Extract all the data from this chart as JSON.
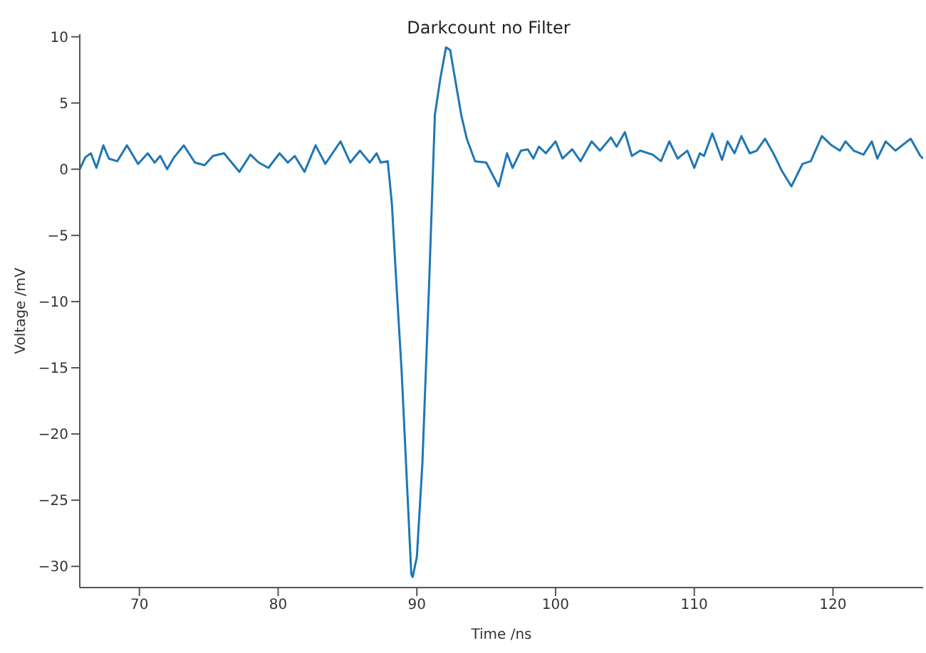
{
  "chart_data": {
    "type": "line",
    "title": "Darkcount no Filter",
    "xlabel": "Time /ns",
    "ylabel": "Voltage /mV",
    "xlim": [
      65.7,
      126.5
    ],
    "ylim": [
      -31.6,
      10.2
    ],
    "xticks": [
      70,
      80,
      90,
      100,
      110,
      120
    ],
    "yticks": [
      -30,
      -25,
      -20,
      -15,
      -10,
      -5,
      0,
      5,
      10
    ],
    "grid": false,
    "legend": false,
    "marker": "none",
    "line_style": "solid",
    "x": [
      65.7,
      66.1,
      66.5,
      66.9,
      67.4,
      67.8,
      68.4,
      69.1,
      69.9,
      70.6,
      71.1,
      71.5,
      72.0,
      72.5,
      73.2,
      74.0,
      74.7,
      75.3,
      76.1,
      77.2,
      78.0,
      78.6,
      79.3,
      80.1,
      80.7,
      81.2,
      81.9,
      82.7,
      83.4,
      84.5,
      85.2,
      85.9,
      86.6,
      87.1,
      87.4,
      87.9,
      88.2,
      88.5,
      88.9,
      89.3,
      89.6,
      89.7,
      90.0,
      90.4,
      90.9,
      91.3,
      91.7,
      92.1,
      92.4,
      93.2,
      93.6,
      94.2,
      95.0,
      95.9,
      96.5,
      96.9,
      97.5,
      98.0,
      98.4,
      98.8,
      99.3,
      100.0,
      100.5,
      101.2,
      101.8,
      102.6,
      103.2,
      104.0,
      104.4,
      105.0,
      105.5,
      106.1,
      107.0,
      107.6,
      108.2,
      108.8,
      109.5,
      110.0,
      110.4,
      110.7,
      111.3,
      112.0,
      112.4,
      112.9,
      113.4,
      114.0,
      114.5,
      115.1,
      115.7,
      116.3,
      117.0,
      117.8,
      118.4,
      119.2,
      119.9,
      120.5,
      120.9,
      121.5,
      122.2,
      122.8,
      123.2,
      123.8,
      124.5,
      125.6,
      126.3,
      126.5
    ],
    "series": [
      {
        "color": "#1f77b4",
        "values": [
          0,
          0.9,
          1.2,
          0.1,
          1.8,
          0.8,
          0.6,
          1.8,
          0.4,
          1.2,
          0.5,
          1.0,
          0,
          0.9,
          1.8,
          0.5,
          0.3,
          1.0,
          1.2,
          -0.2,
          1.1,
          0.5,
          0.1,
          1.2,
          0.5,
          1.0,
          -0.2,
          1.8,
          0.4,
          2.1,
          0.5,
          1.4,
          0.5,
          1.2,
          0.5,
          0.6,
          -2.6,
          -8.2,
          -15.2,
          -24,
          -30.6,
          -30.8,
          -29.3,
          -22.2,
          -8.2,
          4.1,
          6.9,
          9.2,
          9.0,
          4.1,
          2.3,
          0.6,
          0.5,
          -1.3,
          1.2,
          0.1,
          1.4,
          1.5,
          0.8,
          1.7,
          1.2,
          2.1,
          0.8,
          1.5,
          0.6,
          2.1,
          1.4,
          2.4,
          1.7,
          2.8,
          1.0,
          1.4,
          1.1,
          0.6,
          2.1,
          0.8,
          1.4,
          0.1,
          1.2,
          1.0,
          2.7,
          0.7,
          2.1,
          1.2,
          2.5,
          1.2,
          1.4,
          2.3,
          1.2,
          -0.1,
          -1.3,
          0.4,
          0.6,
          2.5,
          1.8,
          1.4,
          2.1,
          1.4,
          1.1,
          2.1,
          0.8,
          2.1,
          1.4,
          2.3,
          1.0,
          0.8
        ]
      }
    ]
  }
}
